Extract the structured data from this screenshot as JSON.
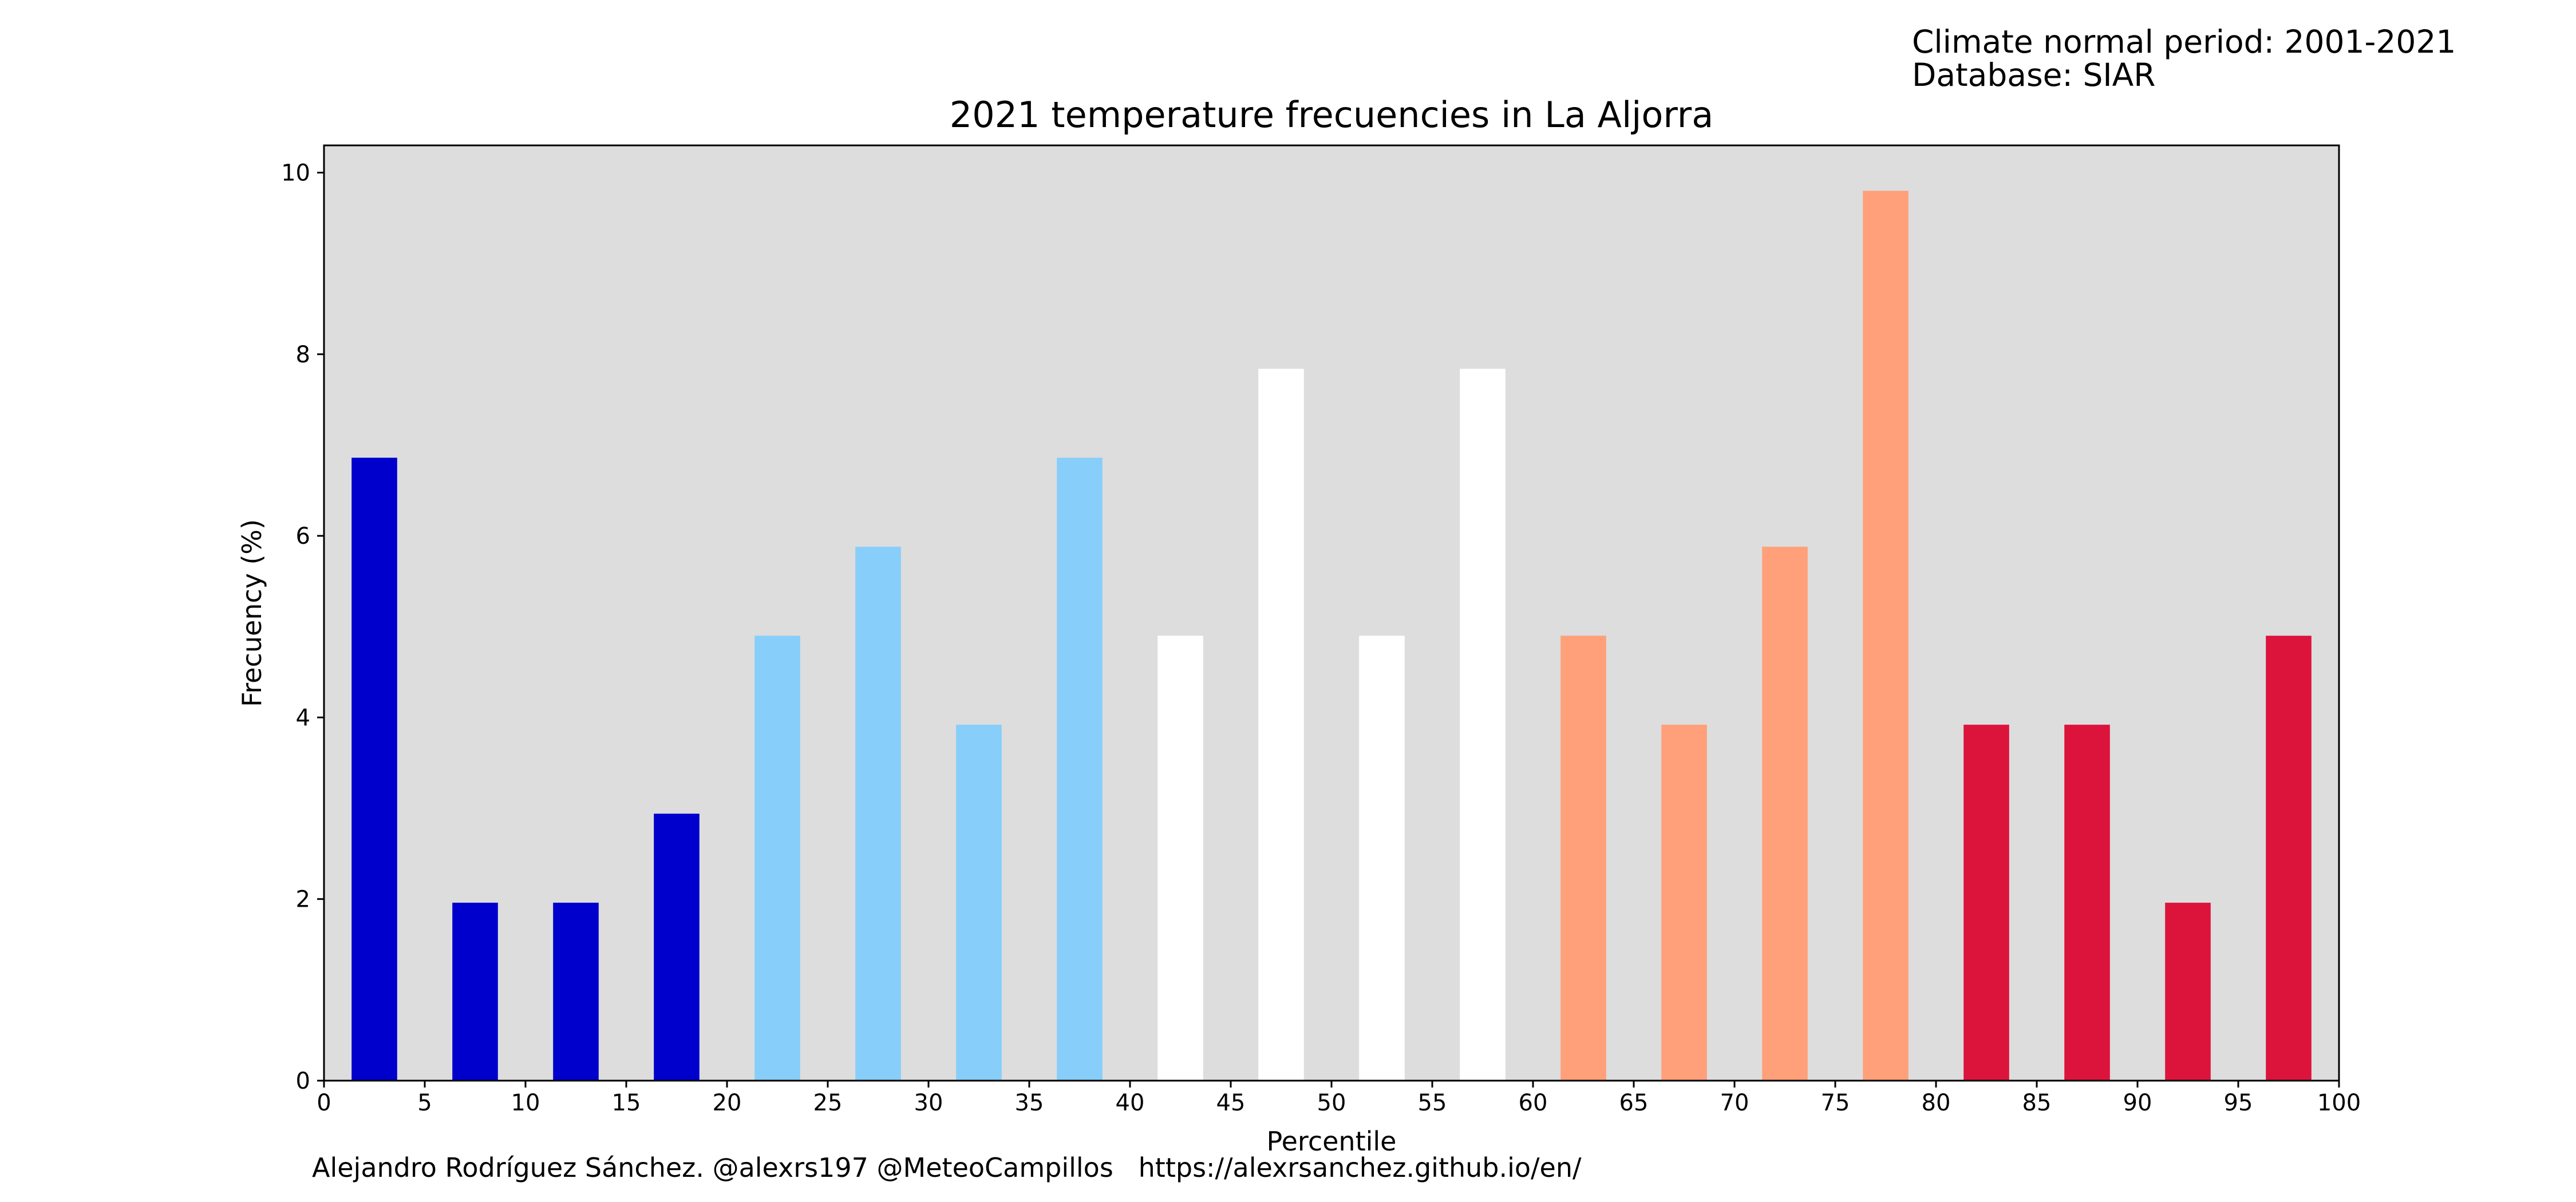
{
  "meta": {
    "period_line": "Climate normal period: 2001-2021",
    "database_line": "Database: SIAR"
  },
  "credits": "Alejandro Rodríguez Sánchez. @alexrs197 @MeteoCampillos   https://alexrsanchez.github.io/en/",
  "colors": {
    "background": "#dddddd",
    "very_cold": "#0000cd",
    "cold": "#87cefa",
    "normal": "#ffffff",
    "warm": "#ffa07a",
    "very_warm": "#dc143c"
  },
  "chart_data": {
    "type": "bar",
    "title": "2021 temperature frecuencies in La Aljorra",
    "xlabel": "Percentile",
    "ylabel": "Frecuency (%)",
    "xlim": [
      0,
      100
    ],
    "ylim": [
      0,
      10.3
    ],
    "xticks": [
      "0",
      "5",
      "10",
      "15",
      "20",
      "25",
      "30",
      "35",
      "40",
      "45",
      "50",
      "55",
      "60",
      "65",
      "70",
      "75",
      "80",
      "85",
      "90",
      "95",
      "100"
    ],
    "yticks": [
      "0",
      "2",
      "4",
      "6",
      "8",
      "10"
    ],
    "grid": false,
    "legend": "none",
    "x": [
      2.5,
      7.5,
      12.5,
      17.5,
      22.5,
      27.5,
      32.5,
      37.5,
      42.5,
      47.5,
      52.5,
      57.5,
      62.5,
      67.5,
      72.5,
      77.5,
      82.5,
      87.5,
      92.5,
      97.5
    ],
    "values": [
      6.86,
      1.96,
      1.96,
      2.94,
      4.9,
      5.88,
      3.92,
      6.86,
      4.9,
      7.84,
      4.9,
      7.84,
      4.9,
      3.92,
      5.88,
      9.8,
      3.92,
      3.92,
      1.96,
      4.9
    ],
    "colors": [
      "#0000cd",
      "#0000cd",
      "#0000cd",
      "#0000cd",
      "#87cefa",
      "#87cefa",
      "#87cefa",
      "#87cefa",
      "#ffffff",
      "#ffffff",
      "#ffffff",
      "#ffffff",
      "#ffa07a",
      "#ffa07a",
      "#ffa07a",
      "#ffa07a",
      "#dc143c",
      "#dc143c",
      "#dc143c",
      "#dc143c"
    ]
  }
}
